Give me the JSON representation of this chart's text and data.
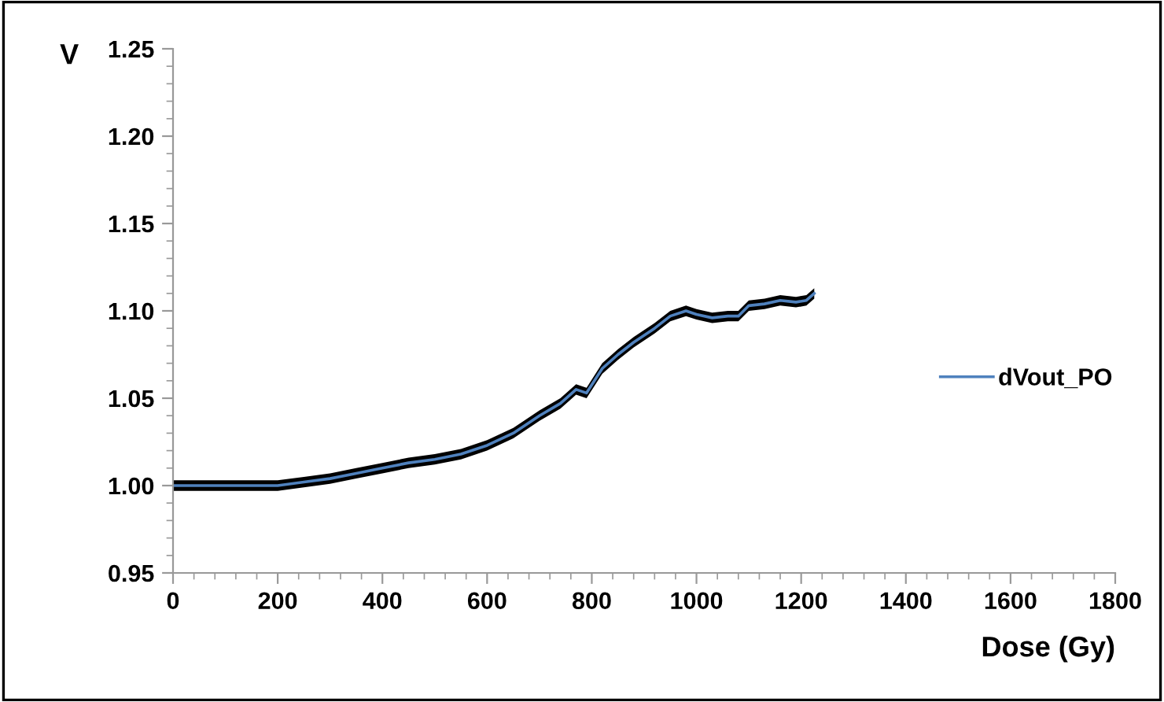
{
  "chart_data": {
    "type": "line",
    "xlabel": "Dose (Gy)",
    "ylabel": "V",
    "xlim": [
      0,
      1800
    ],
    "xticks": [
      0,
      200,
      400,
      600,
      800,
      1000,
      1200,
      1400,
      1600,
      1800
    ],
    "ylim": [
      0.95,
      1.25
    ],
    "yticks": [
      {
        "value": 0.95,
        "label": "0.95"
      },
      {
        "value": 1.0,
        "label": "1.00"
      },
      {
        "value": 1.05,
        "label": "1.05"
      },
      {
        "value": 1.1,
        "label": "1.10"
      },
      {
        "value": 1.15,
        "label": "1.15"
      },
      {
        "value": 1.2,
        "label": "1.20"
      },
      {
        "value": 1.25,
        "label": "1.25"
      }
    ],
    "grid": false,
    "legend": "right",
    "marker": "none",
    "line_style": "solid",
    "series": [
      {
        "name": "dVout_PO",
        "color": "#4f81bd",
        "x": [
          0,
          100,
          200,
          250,
          300,
          350,
          400,
          450,
          500,
          550,
          600,
          650,
          700,
          740,
          770,
          790,
          820,
          850,
          880,
          920,
          950,
          980,
          1000,
          1030,
          1060,
          1080,
          1100,
          1130,
          1160,
          1190,
          1210,
          1225
        ],
        "values": [
          1.0,
          1.0,
          1.0,
          1.002,
          1.004,
          1.007,
          1.01,
          1.013,
          1.015,
          1.018,
          1.023,
          1.03,
          1.04,
          1.047,
          1.055,
          1.053,
          1.067,
          1.075,
          1.082,
          1.09,
          1.097,
          1.1,
          1.098,
          1.096,
          1.097,
          1.097,
          1.103,
          1.104,
          1.106,
          1.105,
          1.106,
          1.11
        ],
        "lower": [
          0.997,
          0.997,
          0.997,
          0.999,
          1.001,
          1.004,
          1.007,
          1.01,
          1.012,
          1.015,
          1.02,
          1.027,
          1.037,
          1.044,
          1.052,
          1.05,
          1.064,
          1.072,
          1.079,
          1.087,
          1.094,
          1.097,
          1.095,
          1.093,
          1.094,
          1.094,
          1.1,
          1.101,
          1.103,
          1.102,
          1.103,
          1.107
        ],
        "upper": [
          1.003,
          1.003,
          1.003,
          1.005,
          1.007,
          1.01,
          1.013,
          1.016,
          1.018,
          1.021,
          1.026,
          1.033,
          1.043,
          1.05,
          1.058,
          1.056,
          1.07,
          1.078,
          1.085,
          1.093,
          1.1,
          1.103,
          1.101,
          1.099,
          1.1,
          1.1,
          1.106,
          1.107,
          1.109,
          1.108,
          1.109,
          1.113
        ]
      }
    ]
  }
}
